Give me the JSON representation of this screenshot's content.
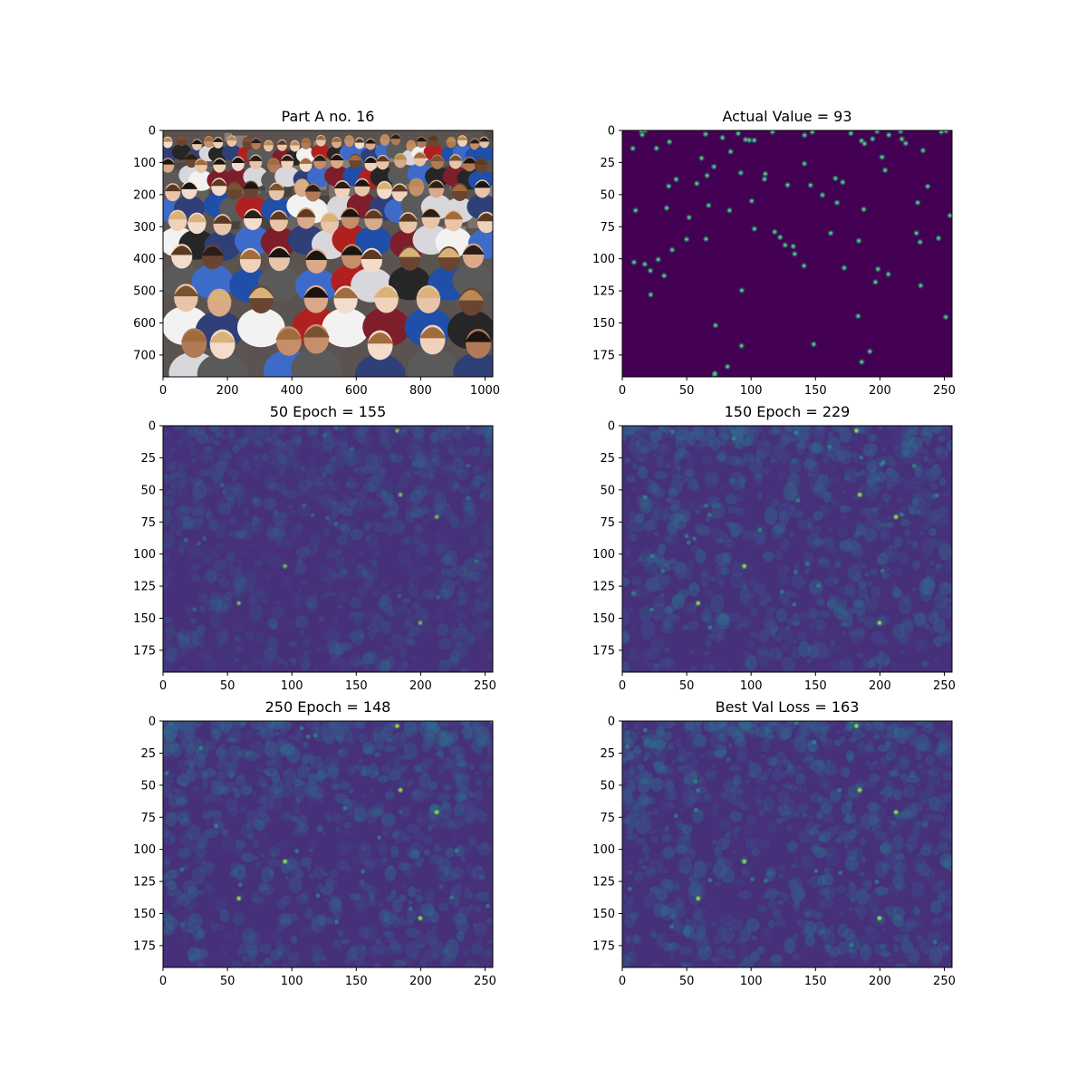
{
  "figure": {
    "layout": "3x2 grid of image panels"
  },
  "chart_data": [
    {
      "type": "heatmap",
      "title": "Part A no. 16",
      "content": "photo of a crowd of people",
      "xlim": [
        0,
        1024
      ],
      "ylim": [
        768,
        0
      ],
      "xticks": [
        0,
        200,
        400,
        600,
        800,
        1000
      ],
      "yticks": [
        0,
        100,
        200,
        300,
        400,
        500,
        600,
        700
      ]
    },
    {
      "type": "heatmap",
      "title": "Actual Value = 93",
      "content": "ground-truth density map (sparse dots)",
      "colormap": "viridis",
      "count": 93,
      "xlim": [
        0,
        256
      ],
      "ylim": [
        192,
        0
      ],
      "xticks": [
        0,
        50,
        100,
        150,
        200,
        250
      ],
      "yticks": [
        0,
        25,
        50,
        75,
        100,
        125,
        150,
        175
      ]
    },
    {
      "type": "heatmap",
      "title": "50 Epoch = 155",
      "content": "predicted density map",
      "colormap": "viridis",
      "count": 155,
      "xlim": [
        0,
        256
      ],
      "ylim": [
        192,
        0
      ],
      "xticks": [
        0,
        50,
        100,
        150,
        200,
        250
      ],
      "yticks": [
        0,
        25,
        50,
        75,
        100,
        125,
        150,
        175
      ]
    },
    {
      "type": "heatmap",
      "title": "150 Epoch = 229",
      "content": "predicted density map",
      "colormap": "viridis",
      "count": 229,
      "xlim": [
        0,
        256
      ],
      "ylim": [
        192,
        0
      ],
      "xticks": [
        0,
        50,
        100,
        150,
        200,
        250
      ],
      "yticks": [
        0,
        25,
        50,
        75,
        100,
        125,
        150,
        175
      ]
    },
    {
      "type": "heatmap",
      "title": "250 Epoch = 148",
      "content": "predicted density map",
      "colormap": "viridis",
      "count": 148,
      "xlim": [
        0,
        256
      ],
      "ylim": [
        192,
        0
      ],
      "xticks": [
        0,
        50,
        100,
        150,
        200,
        250
      ],
      "yticks": [
        0,
        25,
        50,
        75,
        100,
        125,
        150,
        175
      ]
    },
    {
      "type": "heatmap",
      "title": "Best Val Loss = 163",
      "content": "predicted density map",
      "colormap": "viridis",
      "count": 163,
      "xlim": [
        0,
        256
      ],
      "ylim": [
        192,
        0
      ],
      "xticks": [
        0,
        50,
        100,
        150,
        200,
        250
      ],
      "yticks": [
        0,
        25,
        50,
        75,
        100,
        125,
        150,
        175
      ]
    }
  ]
}
